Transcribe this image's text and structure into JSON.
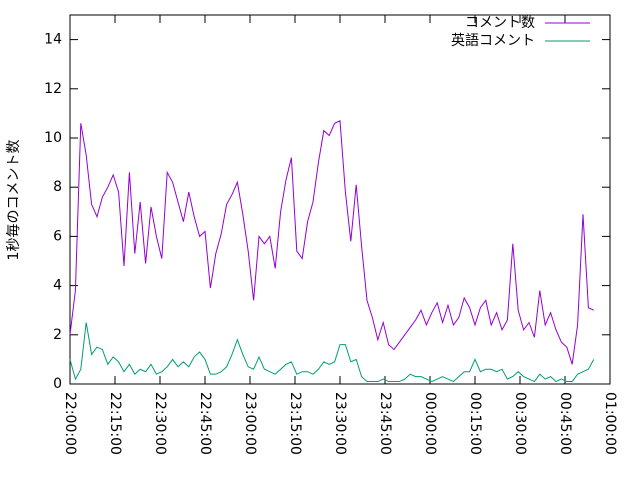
{
  "chart_data": {
    "type": "line",
    "y_label": "1秒毎のコメント数",
    "x": [
      "22:00:00",
      "22:01:48",
      "22:03:36",
      "22:05:24",
      "22:07:12",
      "22:09:00",
      "22:10:48",
      "22:12:36",
      "22:14:24",
      "22:16:12",
      "22:18:00",
      "22:19:48",
      "22:21:36",
      "22:23:24",
      "22:25:12",
      "22:27:00",
      "22:28:48",
      "22:30:36",
      "22:32:24",
      "22:34:12",
      "22:36:00",
      "22:37:48",
      "22:39:36",
      "22:41:24",
      "22:43:12",
      "22:45:00",
      "22:46:48",
      "22:48:36",
      "22:50:24",
      "22:52:12",
      "22:54:00",
      "22:55:48",
      "22:57:36",
      "22:59:24",
      "23:01:12",
      "23:03:00",
      "23:04:48",
      "23:06:36",
      "23:08:24",
      "23:10:12",
      "23:12:00",
      "23:13:48",
      "23:15:36",
      "23:17:24",
      "23:19:12",
      "23:21:00",
      "23:22:48",
      "23:24:36",
      "23:26:24",
      "23:28:12",
      "23:30:00",
      "23:31:48",
      "23:33:36",
      "23:35:24",
      "23:37:12",
      "23:39:00",
      "23:40:48",
      "23:42:36",
      "23:44:24",
      "23:46:12",
      "23:48:00",
      "23:49:48",
      "23:51:36",
      "23:53:24",
      "23:55:12",
      "23:57:00",
      "23:58:48",
      "00:00:36",
      "00:02:24",
      "00:04:12",
      "00:06:00",
      "00:07:48",
      "00:09:36",
      "00:11:24",
      "00:13:12",
      "00:15:00",
      "00:16:48",
      "00:18:36",
      "00:20:24",
      "00:22:12",
      "00:24:00",
      "00:25:48",
      "00:27:36",
      "00:29:24",
      "00:31:12",
      "00:33:00",
      "00:34:48",
      "00:36:36",
      "00:38:24",
      "00:40:12",
      "00:42:00",
      "00:43:48",
      "00:45:36",
      "00:47:24",
      "00:49:12",
      "00:51:00",
      "00:52:48",
      "00:54:36"
    ],
    "series": [
      {
        "name": "コメント数",
        "color": "#9400d3",
        "values": [
          2.0,
          3.8,
          10.6,
          9.3,
          7.3,
          6.8,
          7.6,
          8.0,
          8.5,
          7.8,
          4.8,
          8.6,
          5.3,
          7.4,
          4.9,
          7.2,
          6.0,
          5.1,
          8.6,
          8.2,
          7.4,
          6.6,
          7.8,
          6.8,
          6.0,
          6.2,
          3.9,
          5.3,
          6.1,
          7.3,
          7.7,
          8.2,
          6.9,
          5.4,
          3.4,
          6.0,
          5.7,
          6.0,
          4.7,
          7.0,
          8.3,
          9.2,
          5.4,
          5.1,
          6.6,
          7.4,
          9.0,
          10.3,
          10.1,
          10.6,
          10.7,
          7.8,
          5.8,
          8.1,
          5.6,
          3.4,
          2.7,
          1.8,
          2.5,
          1.6,
          1.4,
          1.7,
          2.0,
          2.3,
          2.6,
          3.0,
          2.4,
          2.9,
          3.3,
          2.5,
          3.2,
          2.4,
          2.7,
          3.5,
          3.1,
          2.4,
          3.1,
          3.4,
          2.4,
          2.9,
          2.2,
          2.6,
          5.7,
          3.0,
          2.2,
          2.5,
          1.9,
          3.8,
          2.4,
          2.9,
          2.2,
          1.7,
          1.5,
          0.8,
          2.4,
          6.9,
          3.1,
          3.0
        ]
      },
      {
        "name": "英語コメント",
        "color": "#009e73",
        "values": [
          1.0,
          0.2,
          0.6,
          2.5,
          1.2,
          1.5,
          1.4,
          0.8,
          1.1,
          0.9,
          0.5,
          0.8,
          0.4,
          0.6,
          0.5,
          0.8,
          0.4,
          0.5,
          0.7,
          1.0,
          0.7,
          0.9,
          0.7,
          1.1,
          1.3,
          1.0,
          0.4,
          0.4,
          0.5,
          0.7,
          1.2,
          1.8,
          1.2,
          0.7,
          0.6,
          1.1,
          0.6,
          0.5,
          0.4,
          0.6,
          0.8,
          0.9,
          0.4,
          0.5,
          0.5,
          0.4,
          0.6,
          0.9,
          0.8,
          0.9,
          1.6,
          1.6,
          0.9,
          1.0,
          0.3,
          0.1,
          0.1,
          0.1,
          0.2,
          0.1,
          0.1,
          0.1,
          0.2,
          0.4,
          0.3,
          0.3,
          0.2,
          0.1,
          0.2,
          0.3,
          0.2,
          0.1,
          0.3,
          0.5,
          0.5,
          1.0,
          0.5,
          0.6,
          0.6,
          0.5,
          0.6,
          0.2,
          0.3,
          0.5,
          0.3,
          0.2,
          0.1,
          0.4,
          0.2,
          0.3,
          0.1,
          0.2,
          0.1,
          0.1,
          0.4,
          0.5,
          0.6,
          1.0
        ]
      }
    ],
    "xlim": [
      "22:00:00",
      "01:00:00"
    ],
    "xticks": [
      "22:00:00",
      "22:15:00",
      "22:30:00",
      "22:45:00",
      "23:00:00",
      "23:15:00",
      "23:30:00",
      "23:45:00",
      "00:00:00",
      "00:15:00",
      "00:30:00",
      "00:45:00",
      "01:00:00"
    ],
    "ylim": [
      0,
      15
    ],
    "yticks": [
      0,
      2,
      4,
      6,
      8,
      10,
      12,
      14
    ],
    "legend": "top-right"
  }
}
